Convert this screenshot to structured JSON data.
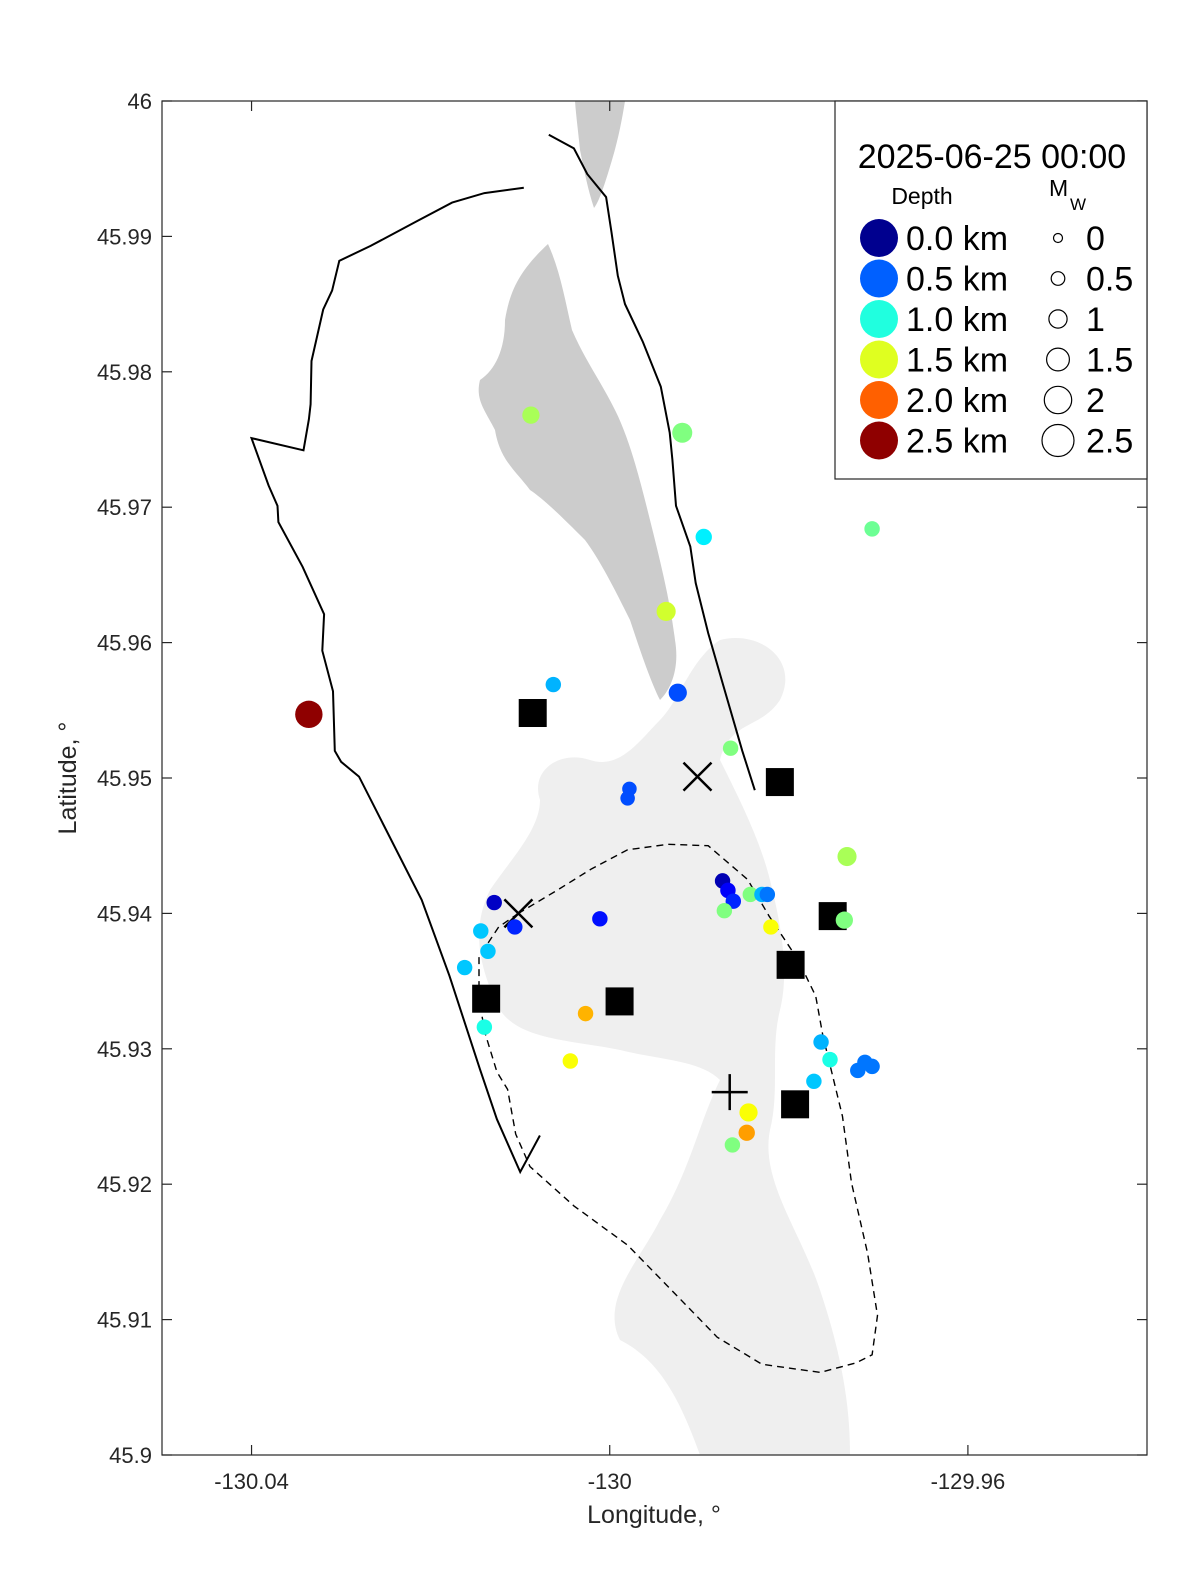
{
  "chart_data": {
    "type": "scatter",
    "title": "",
    "xlabel": "Longitude, °",
    "ylabel": "Latitude, °",
    "xlim": [
      -130.05,
      -129.94
    ],
    "ylim": [
      45.9,
      46.0
    ],
    "xticks": [
      -130.04,
      -130.0,
      -129.96
    ],
    "xtick_labels": [
      "-130.04",
      "-130",
      "-129.96"
    ],
    "yticks": [
      45.9,
      45.91,
      45.92,
      45.93,
      45.94,
      45.95,
      45.96,
      45.97,
      45.98,
      45.99,
      46.0
    ],
    "ytick_labels": [
      "45.9",
      "45.91",
      "45.92",
      "45.93",
      "45.94",
      "45.95",
      "45.96",
      "45.97",
      "45.98",
      "45.99",
      "46"
    ],
    "grid": false,
    "legend": {
      "position": "top-right",
      "title": "2025-06-25 00:00",
      "depth_header": "Depth",
      "mag_header": "M",
      "mag_header_sub": "W",
      "depth_entries": [
        {
          "label": "0.0 km",
          "color": "#00008f"
        },
        {
          "label": "0.5 km",
          "color": "#0060ff"
        },
        {
          "label": "1.0 km",
          "color": "#20ffdf"
        },
        {
          "label": "1.5 km",
          "color": "#dfff20"
        },
        {
          "label": "2.0 km",
          "color": "#ff6000"
        },
        {
          "label": "2.5 km",
          "color": "#8f0000"
        }
      ],
      "mag_entries": [
        {
          "label": "0",
          "mag": 0
        },
        {
          "label": "0.5",
          "mag": 0.5
        },
        {
          "label": "1",
          "mag": 1
        },
        {
          "label": "1.5",
          "mag": 1.5
        },
        {
          "label": "2",
          "mag": 2
        },
        {
          "label": "2.5",
          "mag": 2.5
        }
      ]
    },
    "colormap": {
      "depth_range_km": [
        0,
        2.5
      ],
      "stops": [
        "#00008f",
        "#0000ff",
        "#0080ff",
        "#00ffff",
        "#80ff80",
        "#ffff00",
        "#ff8000",
        "#ff0000",
        "#8f0000"
      ]
    },
    "earthquakes": [
      {
        "lon": -130.0336,
        "lat": 45.9547,
        "depth": 2.5,
        "mag": 2.0
      },
      {
        "lon": -130.0088,
        "lat": 45.9768,
        "depth": 1.35,
        "mag": 0.9
      },
      {
        "lon": -129.9919,
        "lat": 45.9755,
        "depth": 1.25,
        "mag": 1.2
      },
      {
        "lon": -129.9895,
        "lat": 45.9678,
        "depth": 0.9,
        "mag": 0.8
      },
      {
        "lon": -129.9707,
        "lat": 45.9684,
        "depth": 1.2,
        "mag": 0.7
      },
      {
        "lon": -129.9937,
        "lat": 45.9623,
        "depth": 1.45,
        "mag": 1.1
      },
      {
        "lon": -130.0063,
        "lat": 45.9569,
        "depth": 0.75,
        "mag": 0.7
      },
      {
        "lon": -129.9924,
        "lat": 45.9563,
        "depth": 0.5,
        "mag": 1.0
      },
      {
        "lon": -129.9865,
        "lat": 45.9522,
        "depth": 1.25,
        "mag": 0.7
      },
      {
        "lon": -129.9978,
        "lat": 45.9492,
        "depth": 0.5,
        "mag": 0.6
      },
      {
        "lon": -129.998,
        "lat": 45.9485,
        "depth": 0.5,
        "mag": 0.6
      },
      {
        "lon": -129.9735,
        "lat": 45.9442,
        "depth": 1.35,
        "mag": 1.1
      },
      {
        "lon": -129.9874,
        "lat": 45.9424,
        "depth": 0.1,
        "mag": 0.7
      },
      {
        "lon": -129.9868,
        "lat": 45.9417,
        "depth": 0.3,
        "mag": 0.7
      },
      {
        "lon": -129.9862,
        "lat": 45.9409,
        "depth": 0.4,
        "mag": 0.7
      },
      {
        "lon": -129.9843,
        "lat": 45.9414,
        "depth": 1.25,
        "mag": 0.7
      },
      {
        "lon": -129.983,
        "lat": 45.9414,
        "depth": 0.75,
        "mag": 0.7
      },
      {
        "lon": -129.9824,
        "lat": 45.9414,
        "depth": 0.6,
        "mag": 0.7
      },
      {
        "lon": -129.9872,
        "lat": 45.9402,
        "depth": 1.25,
        "mag": 0.7
      },
      {
        "lon": -129.9738,
        "lat": 45.9395,
        "depth": 1.25,
        "mag": 0.9
      },
      {
        "lon": -129.982,
        "lat": 45.939,
        "depth": 1.55,
        "mag": 0.7
      },
      {
        "lon": -130.0129,
        "lat": 45.9408,
        "depth": 0.15,
        "mag": 0.7
      },
      {
        "lon": -130.0106,
        "lat": 45.939,
        "depth": 0.4,
        "mag": 0.7
      },
      {
        "lon": -130.0011,
        "lat": 45.9396,
        "depth": 0.35,
        "mag": 0.7
      },
      {
        "lon": -130.0144,
        "lat": 45.9387,
        "depth": 0.8,
        "mag": 0.7
      },
      {
        "lon": -130.0136,
        "lat": 45.9372,
        "depth": 0.8,
        "mag": 0.7
      },
      {
        "lon": -130.0162,
        "lat": 45.936,
        "depth": 0.8,
        "mag": 0.7
      },
      {
        "lon": -130.014,
        "lat": 45.9316,
        "depth": 1.0,
        "mag": 0.7
      },
      {
        "lon": -130.0027,
        "lat": 45.9326,
        "depth": 1.75,
        "mag": 0.7
      },
      {
        "lon": -130.0044,
        "lat": 45.9291,
        "depth": 1.55,
        "mag": 0.7
      },
      {
        "lon": -129.9764,
        "lat": 45.9305,
        "depth": 0.75,
        "mag": 0.7
      },
      {
        "lon": -129.9754,
        "lat": 45.9292,
        "depth": 1.0,
        "mag": 0.7
      },
      {
        "lon": -129.9715,
        "lat": 45.929,
        "depth": 0.6,
        "mag": 0.7
      },
      {
        "lon": -129.9707,
        "lat": 45.9287,
        "depth": 0.6,
        "mag": 0.7
      },
      {
        "lon": -129.9723,
        "lat": 45.9284,
        "depth": 0.6,
        "mag": 0.7
      },
      {
        "lon": -129.9772,
        "lat": 45.9276,
        "depth": 0.8,
        "mag": 0.7
      },
      {
        "lon": -129.9845,
        "lat": 45.9253,
        "depth": 1.55,
        "mag": 1.0
      },
      {
        "lon": -129.9847,
        "lat": 45.9238,
        "depth": 1.8,
        "mag": 0.8
      },
      {
        "lon": -129.9863,
        "lat": 45.9229,
        "depth": 1.25,
        "mag": 0.7
      }
    ],
    "stations_square": [
      {
        "lon": -130.0086,
        "lat": 45.9548
      },
      {
        "lon": -129.981,
        "lat": 45.9497
      },
      {
        "lon": -129.9751,
        "lat": 45.9398
      },
      {
        "lon": -129.9798,
        "lat": 45.9362
      },
      {
        "lon": -130.0138,
        "lat": 45.9337
      },
      {
        "lon": -129.9989,
        "lat": 45.9335
      },
      {
        "lon": -129.9793,
        "lat": 45.9259
      }
    ],
    "x_markers": [
      {
        "lon": -129.9902,
        "lat": 45.9501
      },
      {
        "lon": -130.0102,
        "lat": 45.94
      }
    ],
    "plus_markers": [
      {
        "lon": -129.9866,
        "lat": 45.9268
      }
    ],
    "outline_solid": [
      [
        -130.0096,
        45.9936
      ],
      [
        -130.014,
        45.9932
      ],
      [
        -130.0176,
        45.9925
      ],
      [
        -130.0216,
        45.9911
      ],
      [
        -130.0267,
        45.9893
      ],
      [
        -130.0302,
        45.9882
      ],
      [
        -130.031,
        45.986
      ],
      [
        -130.032,
        45.9846
      ],
      [
        -130.0333,
        45.9808
      ],
      [
        -130.0334,
        45.9776
      ],
      [
        -130.0336,
        45.9765
      ],
      [
        -130.0342,
        45.9742
      ],
      [
        -130.04,
        45.9751
      ],
      [
        -130.0381,
        45.9716
      ],
      [
        -130.0371,
        45.9701
      ],
      [
        -130.037,
        45.9689
      ],
      [
        -130.0343,
        45.9656
      ],
      [
        -130.0319,
        45.9621
      ],
      [
        -130.0321,
        45.9594
      ],
      [
        -130.0309,
        45.9564
      ],
      [
        -130.0307,
        45.952
      ],
      [
        -130.03,
        45.9512
      ],
      [
        -130.028,
        45.9501
      ],
      [
        -130.025,
        45.9462
      ],
      [
        -130.021,
        45.941
      ],
      [
        -130.0179,
        45.9354
      ],
      [
        -130.0145,
        45.9285
      ],
      [
        -130.0126,
        45.9248
      ],
      [
        -130.01,
        45.9209
      ],
      [
        -130.0078,
        45.9236
      ]
    ],
    "outline_dashed": [
      [
        -130.0102,
        45.94
      ],
      [
        -130.0124,
        45.939
      ],
      [
        -130.0146,
        45.9368
      ],
      [
        -130.0146,
        45.9336
      ],
      [
        -130.0139,
        45.9311
      ],
      [
        -130.0126,
        45.9283
      ],
      [
        -130.0114,
        45.927
      ],
      [
        -130.0105,
        45.9237
      ],
      [
        -130.0089,
        45.9213
      ],
      [
        -130.004,
        45.9184
      ],
      [
        -129.998,
        45.9155
      ],
      [
        -129.9924,
        45.9117
      ],
      [
        -129.988,
        45.9087
      ],
      [
        -129.983,
        45.9067
      ],
      [
        -129.9765,
        45.9061
      ],
      [
        -129.9725,
        45.9068
      ],
      [
        -129.9707,
        45.9074
      ],
      [
        -129.9701,
        45.9103
      ],
      [
        -129.9712,
        45.9149
      ],
      [
        -129.973,
        45.9201
      ],
      [
        -129.974,
        45.925
      ],
      [
        -129.9762,
        45.931
      ],
      [
        -129.977,
        45.9339
      ],
      [
        -129.979,
        45.9366
      ],
      [
        -129.9822,
        45.9398
      ],
      [
        -129.9846,
        45.9425
      ],
      [
        -129.989,
        45.945
      ],
      [
        -129.9935,
        45.9451
      ],
      [
        -129.998,
        45.9447
      ],
      [
        -130.002,
        45.9433
      ],
      [
        -130.0059,
        45.9417
      ],
      [
        -130.0102,
        45.94
      ]
    ],
    "outline_solid_east": [
      [
        -130.0068,
        45.9975
      ],
      [
        -130.004,
        45.9965
      ],
      [
        -130.0025,
        45.9946
      ],
      [
        -130.0004,
        45.9929
      ],
      [
        -129.9998,
        45.9903
      ],
      [
        -129.9991,
        45.9871
      ],
      [
        -129.9983,
        45.985
      ],
      [
        -129.9963,
        45.9822
      ],
      [
        -129.9943,
        45.9789
      ],
      [
        -129.9933,
        45.9755
      ],
      [
        -129.993,
        45.9735
      ],
      [
        -129.9926,
        45.9701
      ],
      [
        -129.991,
        45.9671
      ],
      [
        -129.9904,
        45.9644
      ],
      [
        -129.989,
        45.9607
      ],
      [
        -129.9873,
        45.9568
      ],
      [
        -129.9852,
        45.952
      ],
      [
        -129.9838,
        45.9491
      ]
    ]
  }
}
